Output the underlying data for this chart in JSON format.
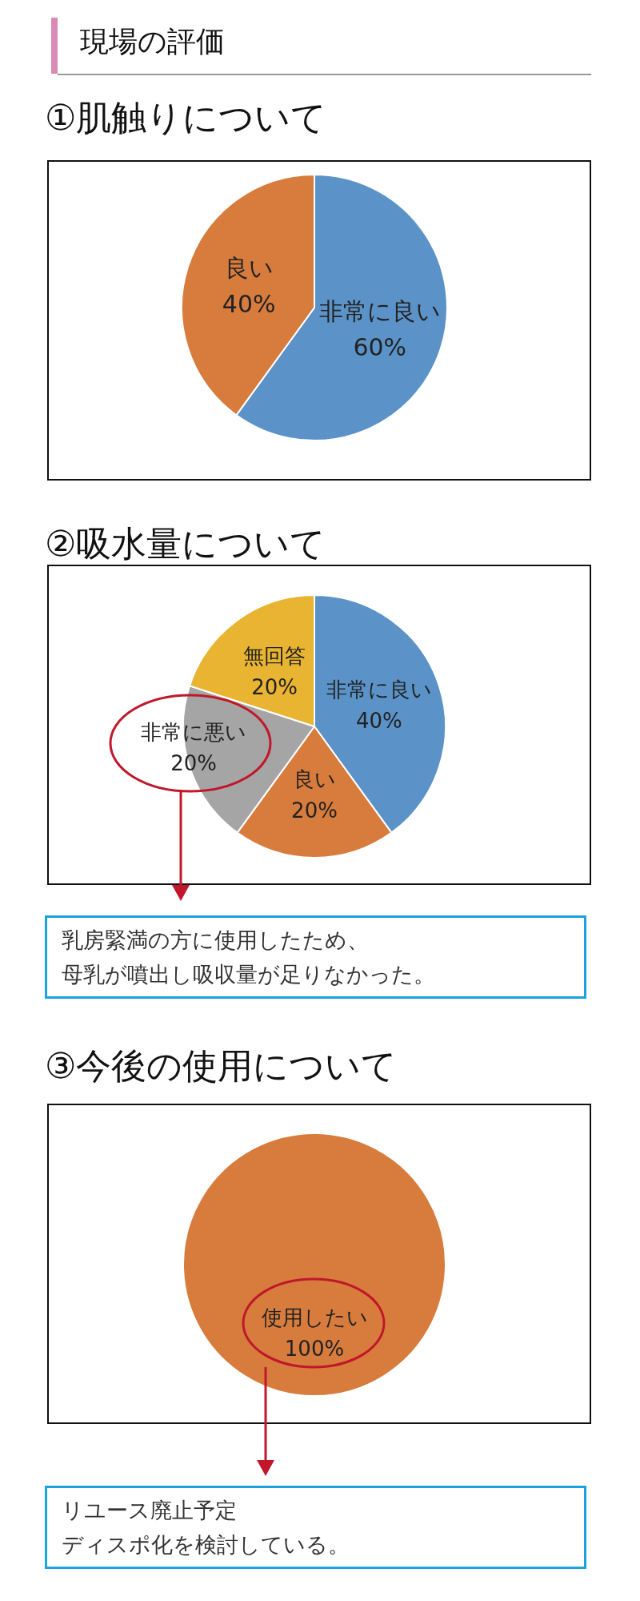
{
  "chart_data": [
    {
      "type": "pie",
      "title": "①肌触りについて",
      "categories": [
        "非常に良い",
        "良い"
      ],
      "values": [
        60,
        40
      ],
      "colors": [
        "#5b93c9",
        "#d77c3d"
      ],
      "value_labels": [
        "60%",
        "40%"
      ],
      "annotations": [
        "現場の評価"
      ]
    },
    {
      "type": "pie",
      "title": "②吸水量について",
      "categories": [
        "非常に良い",
        "良い",
        "非常に悪い",
        "無回答"
      ],
      "values": [
        40,
        20,
        20,
        20
      ],
      "colors": [
        "#5b93c9",
        "#d77c3d",
        "#a5a5a5",
        "#e9b431"
      ],
      "value_labels": [
        "40%",
        "20%",
        "20%",
        "20%"
      ],
      "annotations": [
        "乳房緊満の方に使用したため、母乳が噴出し吸収量が足りなかった。"
      ]
    },
    {
      "type": "pie",
      "title": "③今後の使用について",
      "categories": [
        "使用したい"
      ],
      "values": [
        100
      ],
      "colors": [
        "#d77c3d"
      ],
      "value_labels": [
        "100%"
      ],
      "annotations": [
        "リユース廃止予定",
        "ディスポ化を検討している。"
      ]
    }
  ]
}
